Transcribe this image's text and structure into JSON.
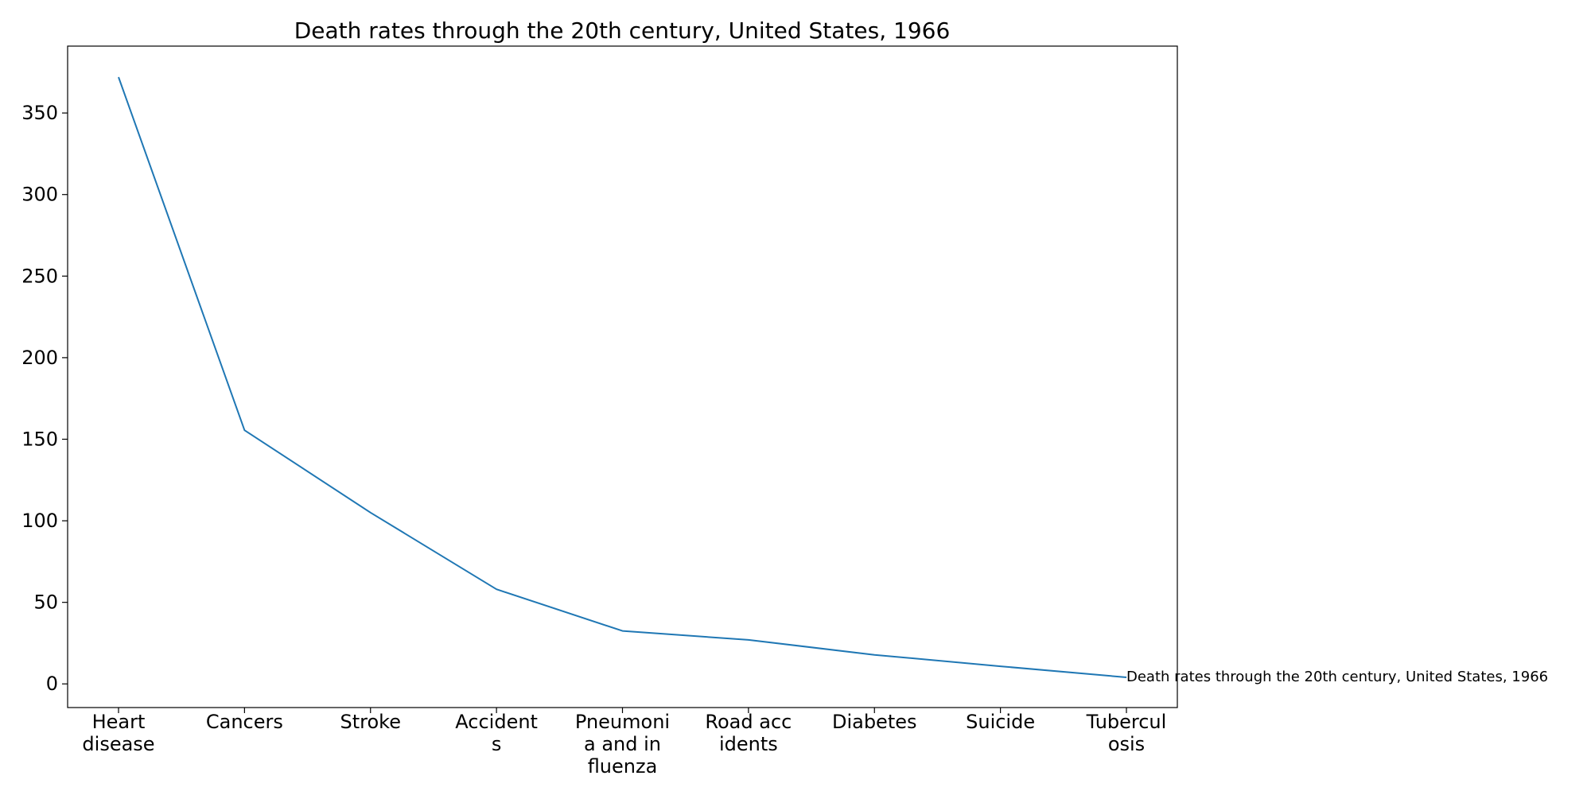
{
  "chart_data": {
    "type": "line",
    "title": "Death rates through the 20th century, United States, 1966",
    "xlabel": "",
    "ylabel": "",
    "categories": [
      [
        "Heart",
        "disease"
      ],
      [
        "Cancers"
      ],
      [
        "Stroke"
      ],
      [
        "Accident",
        "s"
      ],
      [
        "Pneumoni",
        "a and in",
        "fluenza"
      ],
      [
        "Road acc",
        "idents"
      ],
      [
        "Diabetes"
      ],
      [
        "Suicide"
      ],
      [
        "Tubercul",
        "osis"
      ]
    ],
    "series": [
      {
        "values": [
          372,
          155.5,
          105,
          58,
          32.5,
          27,
          17.8,
          10.8,
          4
        ],
        "color": "#1f77b4"
      }
    ],
    "ylim": [
      -14.5,
      391
    ],
    "yticks": [
      0,
      50,
      100,
      150,
      200,
      250,
      300,
      350
    ],
    "grid": false,
    "annotation": {
      "text": "Death rates through the 20th century, United States, 1966",
      "category_index": 8,
      "value": 4
    }
  }
}
